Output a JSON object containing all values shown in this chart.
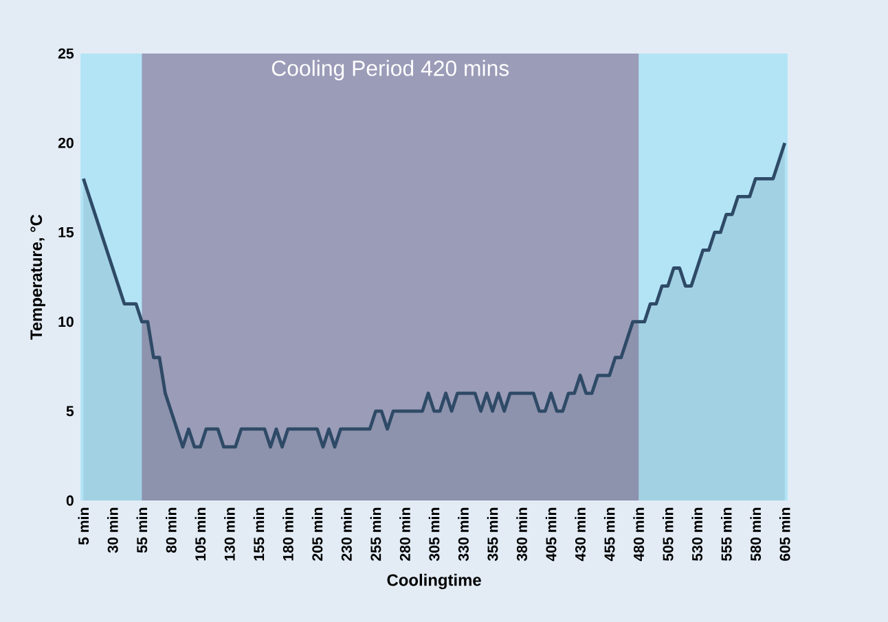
{
  "chart_data": {
    "type": "area",
    "xlabel": "Coolingtime",
    "ylabel": "Temperature, °C",
    "categories": [
      "5 min",
      null,
      null,
      null,
      null,
      "30 min",
      null,
      null,
      null,
      null,
      "55 min",
      null,
      null,
      null,
      null,
      "80 min",
      null,
      null,
      null,
      null,
      "105 min",
      null,
      null,
      null,
      null,
      "130 min",
      null,
      null,
      null,
      null,
      "155 min",
      null,
      null,
      null,
      null,
      "180 min",
      null,
      null,
      null,
      null,
      "205 min",
      null,
      null,
      null,
      null,
      "230 min",
      null,
      null,
      null,
      null,
      "255 min",
      null,
      null,
      null,
      null,
      "280 min",
      null,
      null,
      null,
      null,
      "305 min",
      null,
      null,
      null,
      null,
      "330 min",
      null,
      null,
      null,
      null,
      "355 min",
      null,
      null,
      null,
      null,
      "380 min",
      null,
      null,
      null,
      null,
      "405 min",
      null,
      null,
      null,
      null,
      "430 min",
      null,
      null,
      null,
      null,
      "455 min",
      null,
      null,
      null,
      null,
      "480 min",
      null,
      null,
      null,
      null,
      "505 min",
      null,
      null,
      null,
      null,
      "530 min",
      null,
      null,
      null,
      null,
      "555 min",
      null,
      null,
      null,
      null,
      "580 min",
      null,
      null,
      null,
      null,
      "605 min"
    ],
    "series": [
      {
        "color": "#2e4a66",
        "values": [
          18,
          17,
          16,
          15,
          14,
          13,
          12,
          11,
          11,
          11,
          10,
          10,
          8,
          8,
          6,
          5,
          4,
          3,
          4,
          3,
          3,
          4,
          4,
          4,
          3,
          3,
          3,
          4,
          4,
          4,
          4,
          4,
          3,
          4,
          3,
          4,
          4,
          4,
          4,
          4,
          4,
          3,
          4,
          3,
          4,
          4,
          4,
          4,
          4,
          4,
          5,
          5,
          4,
          5,
          5,
          5,
          5,
          5,
          5,
          6,
          5,
          5,
          6,
          5,
          6,
          6,
          6,
          6,
          5,
          6,
          5,
          6,
          5,
          6,
          6,
          6,
          6,
          6,
          5,
          5,
          6,
          5,
          5,
          6,
          6,
          7,
          6,
          6,
          7,
          7,
          7,
          8,
          8,
          9,
          10,
          10,
          10,
          11,
          11,
          12,
          12,
          13,
          13,
          12,
          12,
          13,
          14,
          14,
          15,
          15,
          16,
          16,
          17,
          17,
          17,
          18,
          18,
          18,
          18,
          19,
          20
        ]
      }
    ],
    "bands": [
      {
        "axis": "x",
        "from": "55 min",
        "to": "480 min",
        "label": "Cooling Period 420 mins",
        "color": "#9a9cb8"
      }
    ],
    "ylim": [
      0,
      25
    ],
    "yticks": [
      0,
      5,
      10,
      15,
      20,
      25
    ],
    "grid": false
  }
}
